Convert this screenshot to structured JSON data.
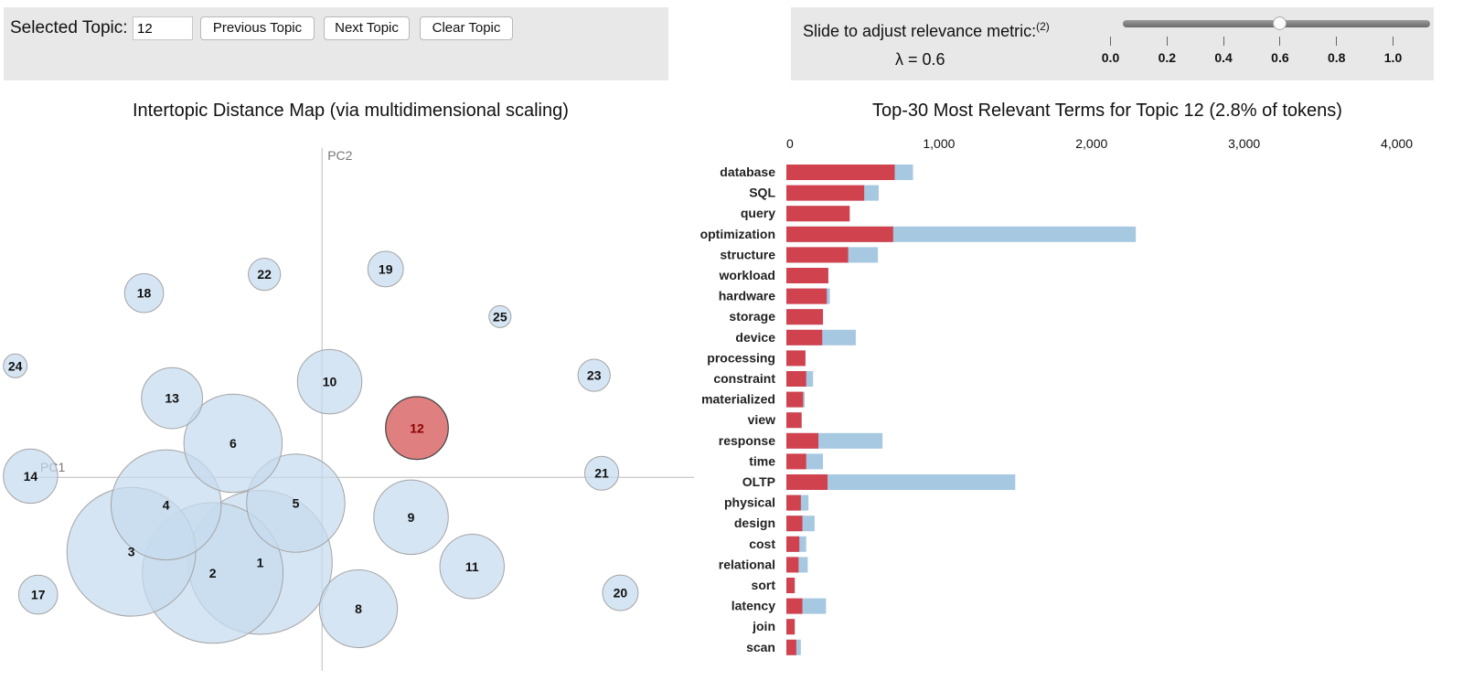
{
  "topic_panel": {
    "label": "Selected Topic:",
    "value": "12",
    "prev_label": "Previous Topic",
    "next_label": "Next Topic",
    "clear_label": "Clear Topic"
  },
  "lambda_panel": {
    "label": "Slide to adjust relevance metric:",
    "footnote": "(2)",
    "value_text": "λ = 0.6",
    "value": 0.6,
    "ticks": [
      "0.0",
      "0.2",
      "0.4",
      "0.6",
      "0.8",
      "1.0"
    ]
  },
  "colors": {
    "bubble": "#c6dbef",
    "selected_bubble": "#e07f7f",
    "term_freq": "#d1424f",
    "overall_freq": "#a6c8e1"
  },
  "chart_data": [
    {
      "type": "scatter",
      "title": "Intertopic Distance Map (via multidimensional scaling)",
      "xlabel": "PC1",
      "ylabel": "PC2",
      "selected_topic": 12,
      "xlim": [
        -0.38,
        0.44
      ],
      "ylim": [
        -0.33,
        0.58
      ],
      "topics": [
        {
          "id": 1,
          "x": -0.073,
          "y": -0.145,
          "r": 0.085
        },
        {
          "id": 2,
          "x": -0.129,
          "y": -0.163,
          "r": 0.083
        },
        {
          "id": 3,
          "x": -0.225,
          "y": -0.127,
          "r": 0.076
        },
        {
          "id": 4,
          "x": -0.184,
          "y": -0.047,
          "r": 0.065
        },
        {
          "id": 5,
          "x": -0.031,
          "y": -0.044,
          "r": 0.058
        },
        {
          "id": 6,
          "x": -0.105,
          "y": 0.058,
          "r": 0.058
        },
        {
          "id": 8,
          "x": 0.043,
          "y": -0.224,
          "r": 0.046
        },
        {
          "id": 9,
          "x": 0.105,
          "y": -0.068,
          "r": 0.044
        },
        {
          "id": 10,
          "x": 0.009,
          "y": 0.163,
          "r": 0.038
        },
        {
          "id": 11,
          "x": 0.177,
          "y": -0.152,
          "r": 0.038
        },
        {
          "id": 12,
          "x": 0.112,
          "y": 0.084,
          "r": 0.037
        },
        {
          "id": 13,
          "x": -0.177,
          "y": 0.135,
          "r": 0.036
        },
        {
          "id": 14,
          "x": -0.344,
          "y": 0.002,
          "r": 0.032
        },
        {
          "id": 17,
          "x": -0.335,
          "y": -0.2,
          "r": 0.023
        },
        {
          "id": 18,
          "x": -0.21,
          "y": 0.314,
          "r": 0.023
        },
        {
          "id": 19,
          "x": 0.075,
          "y": 0.355,
          "r": 0.021
        },
        {
          "id": 20,
          "x": 0.352,
          "y": -0.197,
          "r": 0.021
        },
        {
          "id": 21,
          "x": 0.33,
          "y": 0.007,
          "r": 0.02
        },
        {
          "id": 22,
          "x": -0.068,
          "y": 0.346,
          "r": 0.019
        },
        {
          "id": 23,
          "x": 0.321,
          "y": 0.174,
          "r": 0.019
        },
        {
          "id": 24,
          "x": -0.362,
          "y": 0.19,
          "r": 0.014
        },
        {
          "id": 25,
          "x": 0.21,
          "y": 0.274,
          "r": 0.013
        }
      ]
    },
    {
      "type": "bar",
      "title": "Top-30 Most Relevant Terms for Topic 12 (2.8% of tokens)",
      "orientation": "horizontal",
      "xlim": [
        0,
        4500
      ],
      "x_ticks": [
        0,
        1000,
        2000,
        3000,
        4000
      ],
      "x_tick_labels": [
        "0",
        "1,000",
        "2,000",
        "3,000",
        "4,000"
      ],
      "terms": [
        "database",
        "SQL",
        "query",
        "optimization",
        "structure",
        "workload",
        "hardware",
        "storage",
        "device",
        "processing",
        "constraint",
        "materialized",
        "view",
        "response",
        "time",
        "OLTP",
        "physical",
        "design",
        "cost",
        "relational",
        "sort",
        "latency",
        "join",
        "scan"
      ],
      "series": [
        {
          "values": [
            710,
            510,
            415,
            700,
            405,
            275,
            265,
            240,
            235,
            125,
            130,
            110,
            100,
            210,
            130,
            270,
            95,
            105,
            85,
            80,
            55,
            105,
            55,
            65
          ]
        },
        {
          "values": [
            830,
            605,
            415,
            2290,
            600,
            275,
            285,
            240,
            455,
            125,
            175,
            120,
            100,
            630,
            240,
            1500,
            145,
            185,
            130,
            140,
            55,
            260,
            55,
            95
          ]
        }
      ]
    }
  ]
}
